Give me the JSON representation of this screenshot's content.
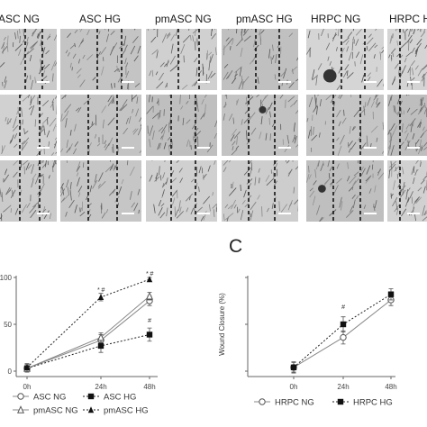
{
  "figure_panels": {
    "micrograph_headers": [
      "ASC NG",
      "ASC HG",
      "pmASC NG",
      "pmASC HG",
      "HRPC NG",
      "HRPC HG"
    ],
    "panel_c_letter": "C"
  },
  "chart_data": [
    {
      "type": "line",
      "categories": [
        "0h",
        "24h",
        "48h"
      ],
      "ylabel": "",
      "ylim": [
        0,
        100
      ],
      "yticks": [
        "0",
        "50",
        "100"
      ],
      "series": [
        {
          "name": "ASC NG",
          "marker": "open-circle",
          "line": "solid",
          "values": [
            3,
            33,
            75
          ],
          "err": [
            4,
            6,
            5
          ]
        },
        {
          "name": "ASC HG",
          "marker": "filled-square",
          "line": "dotted",
          "values": [
            3,
            27,
            39
          ],
          "err": [
            3,
            7,
            7
          ]
        },
        {
          "name": "pmASC NG",
          "marker": "open-triangle",
          "line": "solid",
          "values": [
            3,
            36,
            80
          ],
          "err": [
            3,
            5,
            4
          ]
        },
        {
          "name": "pmASC HG",
          "marker": "filled-triangle",
          "line": "dotted",
          "values": [
            4,
            79,
            98
          ],
          "err": [
            4,
            4,
            2
          ]
        }
      ],
      "annotations": [
        {
          "x": "24h",
          "text": "* #"
        },
        {
          "x": "48h",
          "text": "* #"
        },
        {
          "x": "48h",
          "text": "#"
        }
      ]
    },
    {
      "type": "line",
      "categories": [
        "0h",
        "24h",
        "48h"
      ],
      "ylabel": "Wound Closure (%)",
      "ylim": [
        0,
        100
      ],
      "yticks": [],
      "series": [
        {
          "name": "HRPC NG",
          "marker": "open-circle",
          "line": "solid",
          "values": [
            4,
            36,
            76
          ],
          "err": [
            6,
            7,
            6
          ]
        },
        {
          "name": "HRPC HG",
          "marker": "filled-square",
          "line": "dotted",
          "values": [
            4,
            50,
            82
          ],
          "err": [
            5,
            8,
            6
          ]
        }
      ],
      "annotations": [
        {
          "x": "24h",
          "text": "#"
        }
      ]
    }
  ]
}
